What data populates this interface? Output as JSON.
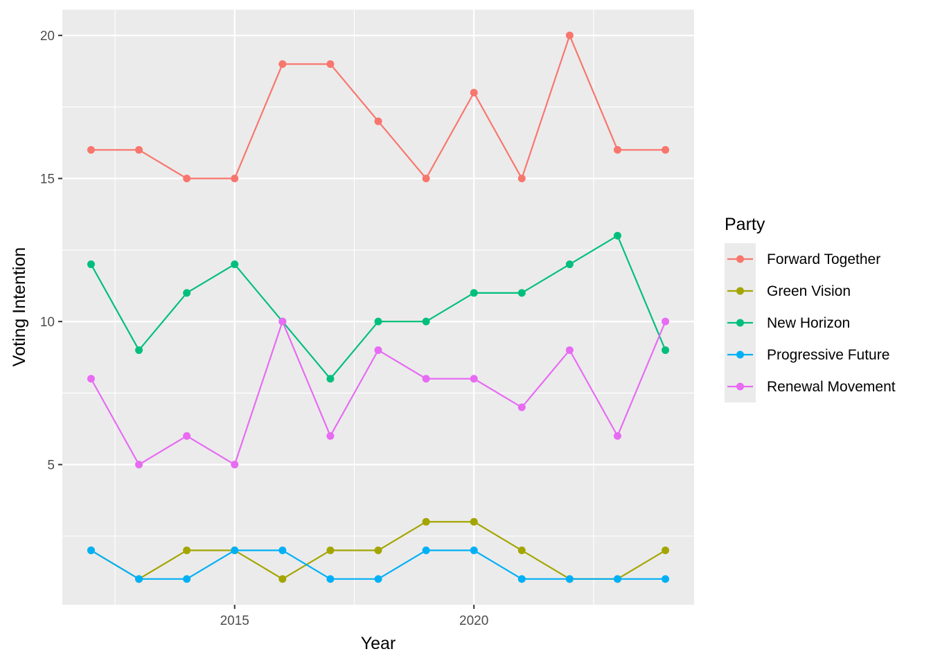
{
  "chart_data": {
    "type": "line",
    "xlabel": "Year",
    "ylabel": "Voting Intention",
    "x": [
      2012,
      2013,
      2014,
      2015,
      2016,
      2017,
      2018,
      2019,
      2020,
      2021,
      2022,
      2023,
      2024
    ],
    "xlim": [
      2011.4,
      2024.6
    ],
    "ylim": [
      0.1,
      20.9
    ],
    "x_ticks": [
      2015,
      2020
    ],
    "x_tick_labels": [
      "2015",
      "2020"
    ],
    "y_ticks": [
      5,
      10,
      15,
      20
    ],
    "y_tick_labels": [
      "5",
      "10",
      "15",
      "20"
    ],
    "grid": true,
    "legend": {
      "title": "Party",
      "position": "right"
    },
    "series": [
      {
        "name": "Forward Together",
        "color": "#F8766D",
        "values": [
          16,
          16,
          15,
          15,
          19,
          19,
          17,
          15,
          18,
          15,
          20,
          16,
          16
        ]
      },
      {
        "name": "Green Vision",
        "color": "#A3A500",
        "values": [
          2,
          1,
          2,
          2,
          1,
          2,
          2,
          3,
          3,
          2,
          1,
          1,
          2
        ]
      },
      {
        "name": "New Horizon",
        "color": "#00BF7D",
        "values": [
          12,
          9,
          11,
          12,
          10,
          8,
          10,
          10,
          11,
          11,
          12,
          13,
          9
        ]
      },
      {
        "name": "Progressive Future",
        "color": "#00B0F6",
        "values": [
          2,
          1,
          1,
          2,
          2,
          1,
          1,
          2,
          2,
          1,
          1,
          1,
          1
        ]
      },
      {
        "name": "Renewal Movement",
        "color": "#E76BF3",
        "values": [
          8,
          5,
          6,
          5,
          10,
          6,
          9,
          8,
          8,
          7,
          9,
          6,
          10
        ]
      }
    ]
  }
}
